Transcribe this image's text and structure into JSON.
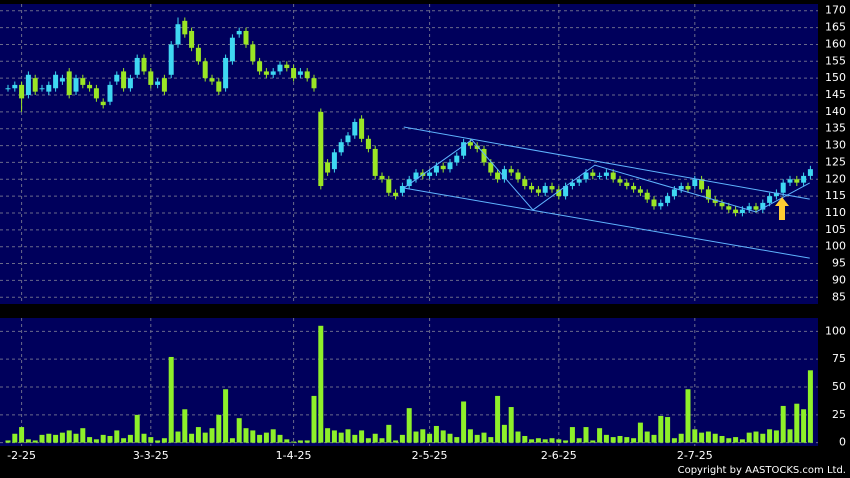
{
  "chart_data": {
    "type": "candlestick",
    "categories": [
      null,
      null,
      "-2-25",
      null,
      null,
      null,
      null,
      null,
      null,
      null,
      null,
      null,
      null,
      null,
      null,
      null,
      null,
      null,
      null,
      null,
      null,
      "3-3-25",
      null,
      null,
      null,
      null,
      null,
      null,
      null,
      null,
      null,
      null,
      null,
      null,
      null,
      null,
      null,
      null,
      null,
      null,
      null,
      null,
      "1-4-25",
      null,
      null,
      null,
      null,
      null,
      null,
      null,
      null,
      null,
      null,
      null,
      null,
      null,
      null,
      null,
      null,
      null,
      null,
      null,
      "2-5-25",
      null,
      null,
      null,
      null,
      null,
      null,
      null,
      null,
      null,
      null,
      null,
      null,
      null,
      null,
      null,
      null,
      null,
      null,
      "2-6-25",
      null,
      null,
      null,
      null,
      null,
      null,
      null,
      null,
      null,
      null,
      null,
      null,
      null,
      null,
      null,
      null,
      null,
      null,
      null,
      "2-7-25",
      null,
      null,
      null,
      null,
      null,
      null,
      null,
      null,
      null,
      null,
      null,
      null,
      null,
      null,
      null,
      null,
      null
    ],
    "open": [
      147,
      147,
      148,
      145,
      150,
      147,
      146,
      147,
      149,
      152,
      146,
      150,
      148,
      147,
      143,
      143,
      149,
      152,
      147,
      151,
      156,
      152,
      148,
      150,
      151,
      160,
      167,
      164,
      159,
      155,
      150,
      149,
      147,
      155,
      163,
      164,
      160,
      155,
      152,
      151,
      152,
      154,
      153,
      151,
      152,
      150,
      140,
      125,
      123,
      128,
      131,
      133,
      138,
      132,
      129,
      121,
      120,
      116,
      116,
      118,
      120,
      122,
      121,
      122,
      124,
      123,
      125,
      127,
      131,
      130,
      129,
      125,
      122,
      120,
      123,
      122,
      120,
      118,
      117,
      116,
      118,
      117,
      115,
      118,
      119,
      120,
      122,
      121,
      121,
      122,
      120,
      119,
      118,
      117,
      116,
      114,
      112,
      113,
      115,
      117,
      118,
      118,
      120,
      117,
      114,
      113,
      112,
      111,
      110,
      111,
      112,
      111,
      113,
      115,
      116,
      119,
      120,
      119,
      121
    ],
    "high": [
      148,
      149,
      149,
      152,
      151,
      148,
      149,
      152,
      151,
      153,
      151,
      151,
      149,
      148,
      144,
      149,
      152,
      153,
      151,
      157,
      157,
      153,
      150,
      151,
      161,
      168,
      168,
      165,
      160,
      156,
      151,
      150,
      157,
      163,
      165,
      165,
      161,
      156,
      153,
      153,
      155,
      155,
      154,
      153,
      153,
      151,
      141,
      126,
      129,
      132,
      134,
      138,
      139,
      133,
      130,
      122,
      121,
      117,
      119,
      121,
      123,
      123,
      123,
      125,
      125,
      126,
      128,
      132,
      132,
      131,
      130,
      126,
      123,
      124,
      124,
      123,
      121,
      119,
      118,
      119,
      119,
      118,
      119,
      120,
      121,
      123,
      123,
      122,
      123,
      123,
      121,
      120,
      119,
      118,
      117,
      115,
      114,
      116,
      118,
      119,
      119,
      121,
      121,
      118,
      115,
      114,
      113,
      112,
      112,
      113,
      113,
      114,
      116,
      117,
      120,
      121,
      121,
      122,
      124
    ],
    "low": [
      146,
      146,
      140,
      144,
      145,
      146,
      145,
      146,
      148,
      144,
      145,
      147,
      146,
      143,
      141,
      142,
      148,
      146,
      146,
      150,
      151,
      147,
      147,
      145,
      150,
      159,
      162,
      158,
      154,
      149,
      148,
      145,
      146,
      154,
      162,
      159,
      154,
      151,
      150,
      150,
      151,
      152,
      149,
      150,
      149,
      146,
      117,
      121,
      122,
      127,
      130,
      132,
      131,
      128,
      120,
      119,
      115,
      114,
      115,
      117,
      119,
      120,
      120,
      121,
      122,
      122,
      124,
      126,
      129,
      128,
      124,
      121,
      119,
      119,
      121,
      119,
      117,
      116,
      115,
      115,
      116,
      114,
      114,
      117,
      118,
      119,
      120,
      120,
      120,
      119,
      118,
      117,
      116,
      115,
      113,
      111,
      111,
      112,
      114,
      116,
      116,
      117,
      116,
      113,
      112,
      111,
      110,
      109,
      109,
      110,
      110,
      110,
      112,
      114,
      115,
      118,
      118,
      118,
      120
    ],
    "close": [
      147,
      148,
      144,
      151,
      146,
      147,
      148,
      151,
      150,
      145,
      150,
      148,
      147,
      144,
      142,
      148,
      151,
      147,
      150,
      156,
      152,
      148,
      149,
      146,
      160,
      166,
      163,
      159,
      155,
      150,
      149,
      146,
      156,
      162,
      164,
      160,
      155,
      152,
      151,
      152,
      154,
      153,
      150,
      152,
      150,
      147,
      118,
      122,
      128,
      131,
      133,
      137,
      132,
      129,
      121,
      120,
      116,
      115,
      118,
      120,
      122,
      121,
      122,
      124,
      123,
      125,
      127,
      131,
      130,
      129,
      125,
      122,
      120,
      123,
      122,
      120,
      118,
      117,
      116,
      118,
      117,
      115,
      118,
      119,
      120,
      122,
      121,
      121,
      122,
      120,
      119,
      118,
      117,
      116,
      114,
      112,
      113,
      115,
      117,
      118,
      117,
      120,
      117,
      114,
      113,
      112,
      111,
      110,
      111,
      112,
      111,
      113,
      115,
      116,
      119,
      120,
      119,
      121,
      123
    ],
    "up_color": "#3fd8f2",
    "down_color": "#9be625",
    "ylim": [
      83,
      172
    ],
    "yticks": [
      85,
      90,
      95,
      100,
      105,
      110,
      115,
      120,
      125,
      130,
      135,
      140,
      145,
      150,
      155,
      160,
      165,
      170
    ],
    "grid": true,
    "volume": {
      "values": [
        2,
        8,
        14,
        3,
        2,
        7,
        8,
        7,
        9,
        11,
        8,
        13,
        5,
        3,
        7,
        6,
        11,
        4,
        7,
        25,
        8,
        5,
        2,
        4,
        77,
        10,
        30,
        8,
        14,
        9,
        13,
        25,
        48,
        4,
        22,
        13,
        11,
        7,
        9,
        12,
        7,
        3,
        1,
        2,
        2,
        42,
        105,
        13,
        11,
        9,
        12,
        7,
        11,
        4,
        8,
        4,
        16,
        2,
        7,
        31,
        10,
        12,
        8,
        15,
        11,
        8,
        5,
        37,
        12,
        7,
        9,
        5,
        42,
        16,
        32,
        10,
        6,
        3,
        4,
        3,
        4,
        3,
        2,
        14,
        4,
        14,
        2,
        13,
        7,
        5,
        6,
        5,
        4,
        18,
        10,
        7,
        24,
        23,
        4,
        8,
        48,
        12,
        9,
        10,
        8,
        6,
        4,
        5,
        3,
        9,
        10,
        8,
        12,
        11,
        33,
        12,
        35,
        30,
        65
      ],
      "color": "#8ef02a",
      "ylim": [
        -3,
        112
      ],
      "yticks": [
        0,
        25,
        50,
        75,
        100
      ]
    },
    "trendlines": [
      {
        "color": "#5fb4ff",
        "x": [
          58.2,
          117.9
        ],
        "y": [
          135.5,
          114.1
        ]
      },
      {
        "color": "#5fb4ff",
        "x": [
          58.2,
          117.9
        ],
        "y": [
          117.4,
          96.6
        ]
      },
      {
        "color": "#5fb4ff",
        "x": [
          58.2,
          68.2,
          77.2,
          86.3,
          110,
          117.9
        ],
        "y": [
          117.4,
          131.7,
          110.9,
          124.2,
          110.3,
          118.9
        ]
      }
    ],
    "footer": "Copyright by AASTOCKS.com Ltd."
  }
}
